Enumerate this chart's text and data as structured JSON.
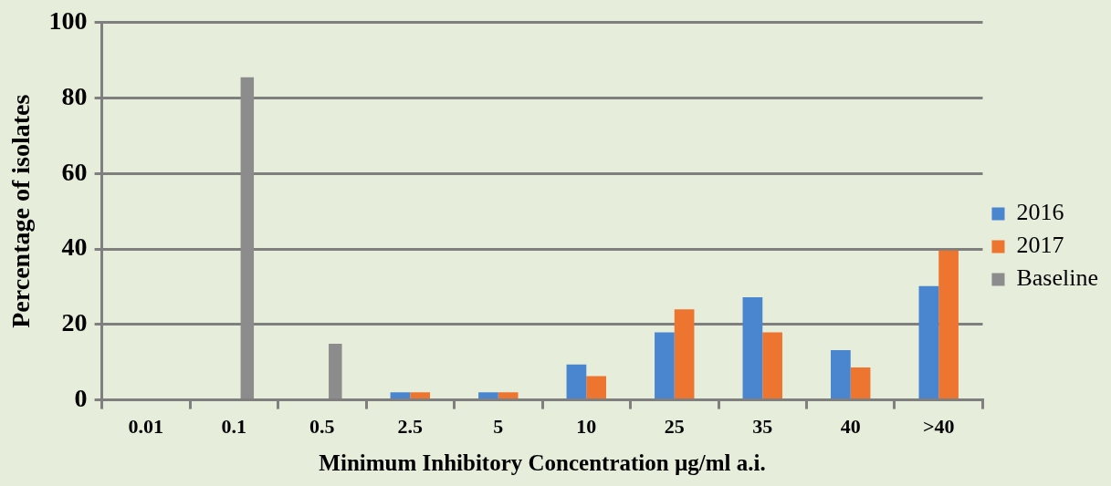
{
  "chart_data": {
    "type": "bar",
    "xlabel": "Minimum Inhibitory Concentration µg/ml a.i.",
    "ylabel": "Percentage of isolates",
    "categories": [
      "0.01",
      "0.1",
      "0.5",
      "2.5",
      "5",
      "10",
      "25",
      "35",
      "40",
      ">40"
    ],
    "series": [
      {
        "name": "2016",
        "color": "#4a86d0",
        "values": [
          0,
          0,
          0,
          2,
          2,
          9.4,
          17.9,
          27.2,
          13.2,
          30.2
        ]
      },
      {
        "name": "2017",
        "color": "#ed7530",
        "values": [
          0,
          0,
          0,
          2,
          2,
          6.3,
          24,
          17.9,
          8.6,
          39.6
        ]
      },
      {
        "name": "Baseline",
        "color": "#8c8c8c",
        "values": [
          null,
          85.5,
          14.9,
          null,
          null,
          null,
          null,
          null,
          null,
          null
        ]
      }
    ],
    "ylim": [
      0,
      100
    ],
    "yticks": [
      0,
      20,
      40,
      60,
      80,
      100
    ],
    "grid": "y",
    "legend": "right"
  }
}
